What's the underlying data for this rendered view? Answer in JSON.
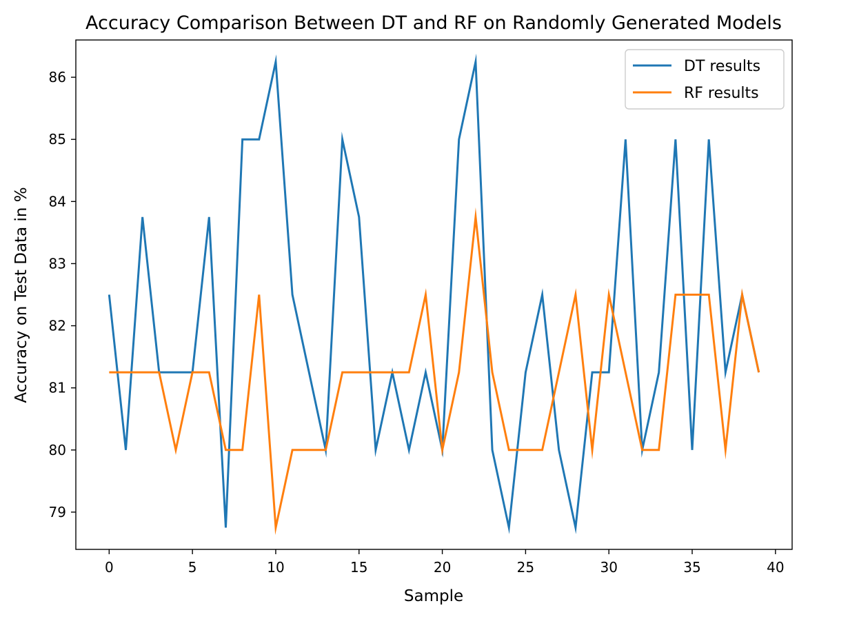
{
  "chart_data": {
    "type": "line",
    "title": "Accuracy Comparison Between DT and RF on Randomly Generated Models",
    "xlabel": "Sample",
    "ylabel": "Accuracy on Test Data in %",
    "xlim": [
      -2,
      41
    ],
    "ylim": [
      78.4,
      86.6
    ],
    "x_ticks": [
      0,
      5,
      10,
      15,
      20,
      25,
      30,
      35,
      40
    ],
    "y_ticks": [
      79,
      80,
      81,
      82,
      83,
      84,
      85,
      86
    ],
    "x": [
      0,
      1,
      2,
      3,
      4,
      5,
      6,
      7,
      8,
      9,
      10,
      11,
      12,
      13,
      14,
      15,
      16,
      17,
      18,
      19,
      20,
      21,
      22,
      23,
      24,
      25,
      26,
      27,
      28,
      29,
      30,
      31,
      32,
      33,
      34,
      35,
      36,
      37,
      38,
      39
    ],
    "grid": false,
    "legend_position": "top-right",
    "series": [
      {
        "name": "DT results",
        "color": "#1f77b4",
        "values": [
          82.5,
          80,
          83.75,
          81.25,
          81.25,
          81.25,
          83.75,
          78.75,
          85,
          85,
          86.25,
          82.5,
          81.25,
          80,
          85,
          83.75,
          80,
          81.25,
          80,
          81.25,
          80,
          85,
          86.25,
          80,
          78.75,
          81.25,
          82.5,
          80,
          78.75,
          81.25,
          81.25,
          85,
          80,
          81.25,
          85,
          80,
          85,
          81.25,
          82.5,
          81.25
        ]
      },
      {
        "name": "RF results",
        "color": "#ff7f0e",
        "values": [
          81.25,
          81.25,
          81.25,
          81.25,
          80,
          81.25,
          81.25,
          80,
          80,
          82.5,
          78.75,
          80,
          80,
          80,
          81.25,
          81.25,
          81.25,
          81.25,
          81.25,
          82.5,
          80,
          81.25,
          83.75,
          81.25,
          80,
          80,
          80,
          81.25,
          82.5,
          80,
          82.5,
          81.25,
          80,
          80,
          82.5,
          82.5,
          82.5,
          80,
          82.5,
          81.25
        ]
      }
    ]
  }
}
